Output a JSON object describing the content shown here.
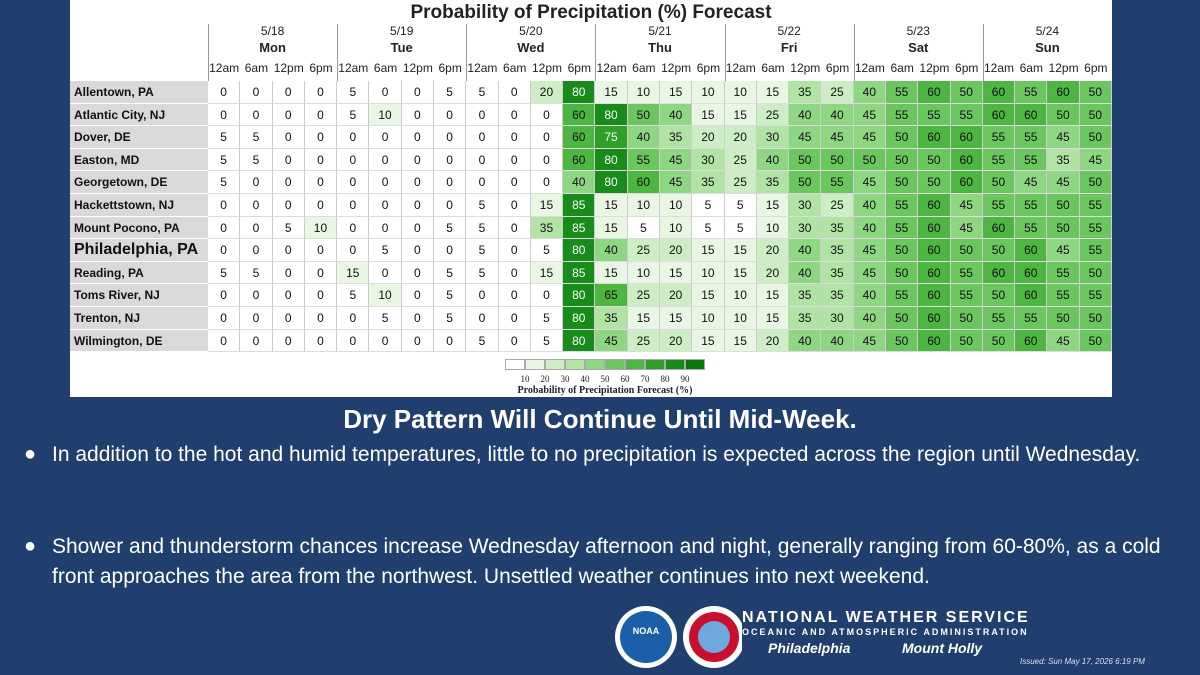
{
  "table": {
    "title": "Probability of Precipitation (%) Forecast",
    "days": [
      {
        "date": "5/18",
        "name": "Mon"
      },
      {
        "date": "5/19",
        "name": "Tue"
      },
      {
        "date": "5/20",
        "name": "Wed"
      },
      {
        "date": "5/21",
        "name": "Thu"
      },
      {
        "date": "5/22",
        "name": "Fri"
      },
      {
        "date": "5/23",
        "name": "Sat"
      },
      {
        "date": "5/24",
        "name": "Sun"
      }
    ],
    "times": [
      "12am",
      "6am",
      "12pm",
      "6pm"
    ],
    "rows": [
      {
        "name": "Allentown, PA",
        "values": [
          0,
          0,
          0,
          0,
          5,
          0,
          0,
          5,
          5,
          0,
          20,
          80,
          15,
          10,
          15,
          10,
          10,
          15,
          35,
          25,
          40,
          55,
          60,
          50,
          60,
          55,
          60,
          50
        ]
      },
      {
        "name": "Atlantic City, NJ",
        "values": [
          0,
          0,
          0,
          0,
          5,
          10,
          0,
          0,
          0,
          0,
          0,
          60,
          80,
          50,
          40,
          15,
          15,
          25,
          40,
          40,
          45,
          55,
          55,
          55,
          60,
          60,
          50,
          50
        ]
      },
      {
        "name": "Dover, DE",
        "values": [
          5,
          5,
          0,
          0,
          0,
          0,
          0,
          0,
          0,
          0,
          0,
          60,
          75,
          40,
          35,
          20,
          20,
          30,
          45,
          45,
          45,
          50,
          60,
          60,
          55,
          55,
          45,
          50
        ]
      },
      {
        "name": "Easton, MD",
        "values": [
          5,
          5,
          0,
          0,
          0,
          0,
          0,
          0,
          0,
          0,
          0,
          60,
          80,
          55,
          45,
          30,
          25,
          40,
          50,
          50,
          50,
          50,
          50,
          60,
          55,
          55,
          35,
          45
        ]
      },
      {
        "name": "Georgetown, DE",
        "values": [
          5,
          0,
          0,
          0,
          0,
          0,
          0,
          0,
          0,
          0,
          0,
          40,
          80,
          60,
          45,
          35,
          25,
          35,
          50,
          55,
          45,
          50,
          50,
          60,
          50,
          45,
          45,
          50
        ]
      },
      {
        "name": "Hackettstown, NJ",
        "values": [
          0,
          0,
          0,
          0,
          0,
          0,
          0,
          0,
          5,
          0,
          15,
          85,
          15,
          10,
          10,
          5,
          5,
          15,
          30,
          25,
          40,
          55,
          60,
          45,
          55,
          55,
          50,
          55
        ]
      },
      {
        "name": "Mount Pocono, PA",
        "values": [
          0,
          0,
          5,
          10,
          0,
          0,
          0,
          5,
          5,
          0,
          35,
          85,
          15,
          5,
          10,
          5,
          5,
          10,
          30,
          35,
          40,
          55,
          60,
          45,
          60,
          55,
          50,
          55
        ]
      },
      {
        "name": "Philadelphia, PA",
        "emphasis": true,
        "values": [
          0,
          0,
          0,
          0,
          0,
          5,
          0,
          0,
          5,
          0,
          5,
          80,
          40,
          25,
          20,
          15,
          15,
          20,
          40,
          35,
          45,
          50,
          60,
          50,
          50,
          60,
          45,
          55
        ]
      },
      {
        "name": "Reading, PA",
        "values": [
          5,
          5,
          0,
          0,
          15,
          0,
          0,
          5,
          5,
          0,
          15,
          85,
          15,
          10,
          15,
          10,
          15,
          20,
          40,
          35,
          45,
          50,
          60,
          55,
          60,
          60,
          55,
          50
        ]
      },
      {
        "name": "Toms River, NJ",
        "values": [
          0,
          0,
          0,
          0,
          5,
          10,
          0,
          5,
          0,
          0,
          0,
          80,
          65,
          25,
          20,
          15,
          10,
          15,
          35,
          35,
          40,
          55,
          60,
          55,
          50,
          60,
          55,
          55
        ]
      },
      {
        "name": "Trenton, NJ",
        "values": [
          0,
          0,
          0,
          0,
          0,
          5,
          0,
          5,
          0,
          0,
          5,
          80,
          35,
          15,
          15,
          10,
          10,
          15,
          35,
          30,
          40,
          50,
          60,
          50,
          55,
          55,
          50,
          50
        ]
      },
      {
        "name": "Wilmington, DE",
        "values": [
          0,
          0,
          0,
          0,
          0,
          0,
          0,
          0,
          5,
          0,
          5,
          80,
          45,
          25,
          20,
          15,
          15,
          20,
          40,
          40,
          45,
          50,
          60,
          50,
          50,
          60,
          45,
          50
        ]
      }
    ],
    "legend": {
      "ticks": [
        10,
        20,
        30,
        40,
        50,
        60,
        70,
        80,
        90
      ],
      "title": "Probability of Precipitation Forecast (%)",
      "colors": [
        "#ffffff",
        "#e8f6e3",
        "#cdeec4",
        "#b0e3a4",
        "#8fd683",
        "#6cc660",
        "#4db642",
        "#2ea02a",
        "#178c1a",
        "#0b7510"
      ]
    }
  },
  "heading": "Dry Pattern Will Continue Until Mid-Week.",
  "bullets": [
    "In addition to the hot and humid temperatures, little to no precipitation is expected across the region until Wednesday.",
    "Shower and thunderstorm chances increase Wednesday afternoon and night, generally ranging from 60-80%, as a cold front approaches the area from the northwest. Unsettled weather continues into next weekend."
  ],
  "branding": {
    "name": "NATIONAL WEATHER SERVICE",
    "agency": "OCEANIC AND ATMOSPHERIC ADMINISTRATION",
    "office1": "Philadelphia",
    "office2": "Mount Holly",
    "logo1": "NOAA"
  },
  "issued": "Issued: Sun May 17, 2026 6:19 PM"
}
